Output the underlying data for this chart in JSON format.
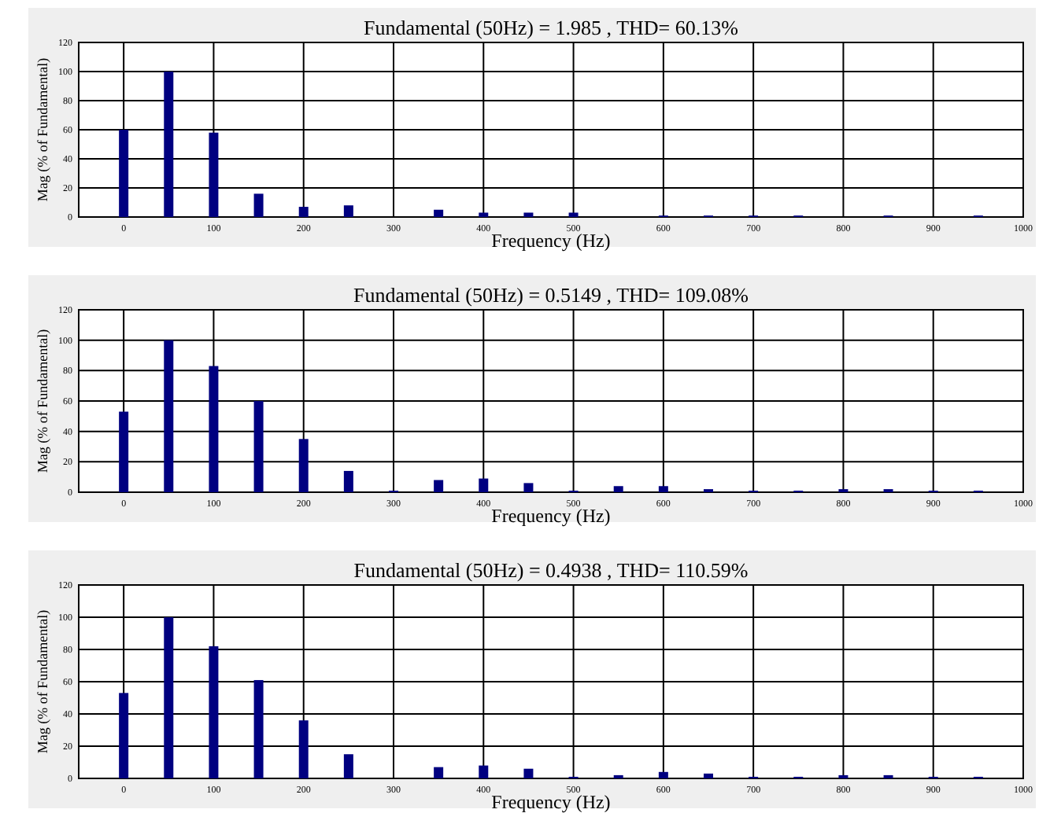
{
  "chart_data": [
    {
      "type": "bar",
      "title": "Fundamental (50Hz) = 1.985 , THD= 60.13%",
      "xlabel": "Frequency (Hz)",
      "ylabel": "Mag (% of Fundamental)",
      "x": [
        0,
        50,
        100,
        150,
        200,
        250,
        300,
        350,
        400,
        450,
        500,
        550,
        600,
        650,
        700,
        750,
        800,
        850,
        900,
        950
      ],
      "values": [
        60,
        100,
        58,
        16,
        7,
        8,
        0,
        5,
        3,
        3,
        3,
        0,
        1,
        1,
        1,
        1,
        0,
        1,
        0,
        1
      ],
      "color": "#000080",
      "xlim": [
        -50,
        1000
      ],
      "ylim": [
        0,
        120
      ],
      "xticks": [
        0,
        100,
        200,
        300,
        400,
        500,
        600,
        700,
        800,
        900,
        1000
      ],
      "yticks": [
        0,
        20,
        40,
        60,
        80,
        100,
        120
      ],
      "grid": true
    },
    {
      "type": "bar",
      "title": "Fundamental (50Hz) = 0.5149 , THD= 109.08%",
      "xlabel": "Frequency (Hz)",
      "ylabel": "Mag (% of Fundamental)",
      "x": [
        0,
        50,
        100,
        150,
        200,
        250,
        300,
        350,
        400,
        450,
        500,
        550,
        600,
        650,
        700,
        750,
        800,
        850,
        900,
        950
      ],
      "values": [
        53,
        100,
        83,
        60,
        35,
        14,
        1,
        8,
        9,
        6,
        1,
        4,
        4,
        2,
        1,
        1,
        2,
        2,
        1,
        1
      ],
      "color": "#000080",
      "xlim": [
        -50,
        1000
      ],
      "ylim": [
        0,
        120
      ],
      "xticks": [
        0,
        100,
        200,
        300,
        400,
        500,
        600,
        700,
        800,
        900,
        1000
      ],
      "yticks": [
        0,
        20,
        40,
        60,
        80,
        100,
        120
      ],
      "grid": true
    },
    {
      "type": "bar",
      "title": "Fundamental (50Hz) = 0.4938 , THD= 110.59%",
      "xlabel": "Frequency (Hz)",
      "ylabel": "Mag (% of Fundamental)",
      "x": [
        0,
        50,
        100,
        150,
        200,
        250,
        300,
        350,
        400,
        450,
        500,
        550,
        600,
        650,
        700,
        750,
        800,
        850,
        900,
        950
      ],
      "values": [
        53,
        100,
        82,
        61,
        36,
        15,
        0,
        7,
        8,
        6,
        1,
        2,
        4,
        3,
        1,
        1,
        2,
        2,
        1,
        1
      ],
      "color": "#000080",
      "xlim": [
        -50,
        1000
      ],
      "ylim": [
        0,
        120
      ],
      "xticks": [
        0,
        100,
        200,
        300,
        400,
        500,
        600,
        700,
        800,
        900,
        1000
      ],
      "yticks": [
        0,
        20,
        40,
        60,
        80,
        100,
        120
      ],
      "grid": true
    }
  ]
}
